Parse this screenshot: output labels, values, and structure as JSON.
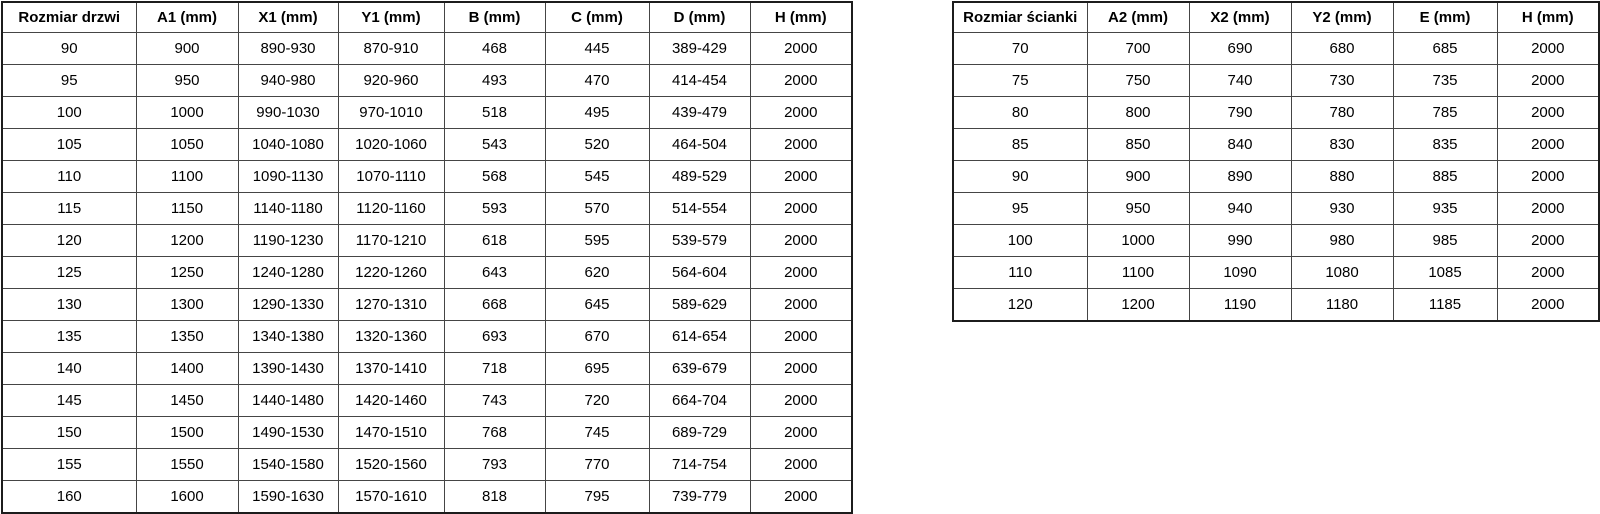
{
  "page": {
    "background": "#ffffff",
    "text_color": "#000000",
    "grid_line_color": "#454545",
    "outer_border_color": "#1c1c1c"
  },
  "tables": [
    {
      "headers": [
        "Rozmiar drzwi",
        "A1 (mm)",
        "X1 (mm)",
        "Y1 (mm)",
        "B (mm)",
        "C (mm)",
        "D (mm)",
        "H (mm)"
      ],
      "rows": [
        [
          "90",
          "900",
          "890-930",
          "870-910",
          "468",
          "445",
          "389-429",
          "2000"
        ],
        [
          "95",
          "950",
          "940-980",
          "920-960",
          "493",
          "470",
          "414-454",
          "2000"
        ],
        [
          "100",
          "1000",
          "990-1030",
          "970-1010",
          "518",
          "495",
          "439-479",
          "2000"
        ],
        [
          "105",
          "1050",
          "1040-1080",
          "1020-1060",
          "543",
          "520",
          "464-504",
          "2000"
        ],
        [
          "110",
          "1100",
          "1090-1130",
          "1070-1110",
          "568",
          "545",
          "489-529",
          "2000"
        ],
        [
          "115",
          "1150",
          "1140-1180",
          "1120-1160",
          "593",
          "570",
          "514-554",
          "2000"
        ],
        [
          "120",
          "1200",
          "1190-1230",
          "1170-1210",
          "618",
          "595",
          "539-579",
          "2000"
        ],
        [
          "125",
          "1250",
          "1240-1280",
          "1220-1260",
          "643",
          "620",
          "564-604",
          "2000"
        ],
        [
          "130",
          "1300",
          "1290-1330",
          "1270-1310",
          "668",
          "645",
          "589-629",
          "2000"
        ],
        [
          "135",
          "1350",
          "1340-1380",
          "1320-1360",
          "693",
          "670",
          "614-654",
          "2000"
        ],
        [
          "140",
          "1400",
          "1390-1430",
          "1370-1410",
          "718",
          "695",
          "639-679",
          "2000"
        ],
        [
          "145",
          "1450",
          "1440-1480",
          "1420-1460",
          "743",
          "720",
          "664-704",
          "2000"
        ],
        [
          "150",
          "1500",
          "1490-1530",
          "1470-1510",
          "768",
          "745",
          "689-729",
          "2000"
        ],
        [
          "155",
          "1550",
          "1540-1580",
          "1520-1560",
          "793",
          "770",
          "714-754",
          "2000"
        ],
        [
          "160",
          "1600",
          "1590-1630",
          "1570-1610",
          "818",
          "795",
          "739-779",
          "2000"
        ]
      ]
    },
    {
      "headers": [
        "Rozmiar ścianki",
        "A2 (mm)",
        "X2 (mm)",
        "Y2 (mm)",
        "E (mm)",
        "H (mm)"
      ],
      "rows": [
        [
          "70",
          "700",
          "690",
          "680",
          "685",
          "2000"
        ],
        [
          "75",
          "750",
          "740",
          "730",
          "735",
          "2000"
        ],
        [
          "80",
          "800",
          "790",
          "780",
          "785",
          "2000"
        ],
        [
          "85",
          "850",
          "840",
          "830",
          "835",
          "2000"
        ],
        [
          "90",
          "900",
          "890",
          "880",
          "885",
          "2000"
        ],
        [
          "95",
          "950",
          "940",
          "930",
          "935",
          "2000"
        ],
        [
          "100",
          "1000",
          "990",
          "980",
          "985",
          "2000"
        ],
        [
          "110",
          "1100",
          "1090",
          "1080",
          "1085",
          "2000"
        ],
        [
          "120",
          "1200",
          "1190",
          "1180",
          "1185",
          "2000"
        ]
      ]
    }
  ]
}
